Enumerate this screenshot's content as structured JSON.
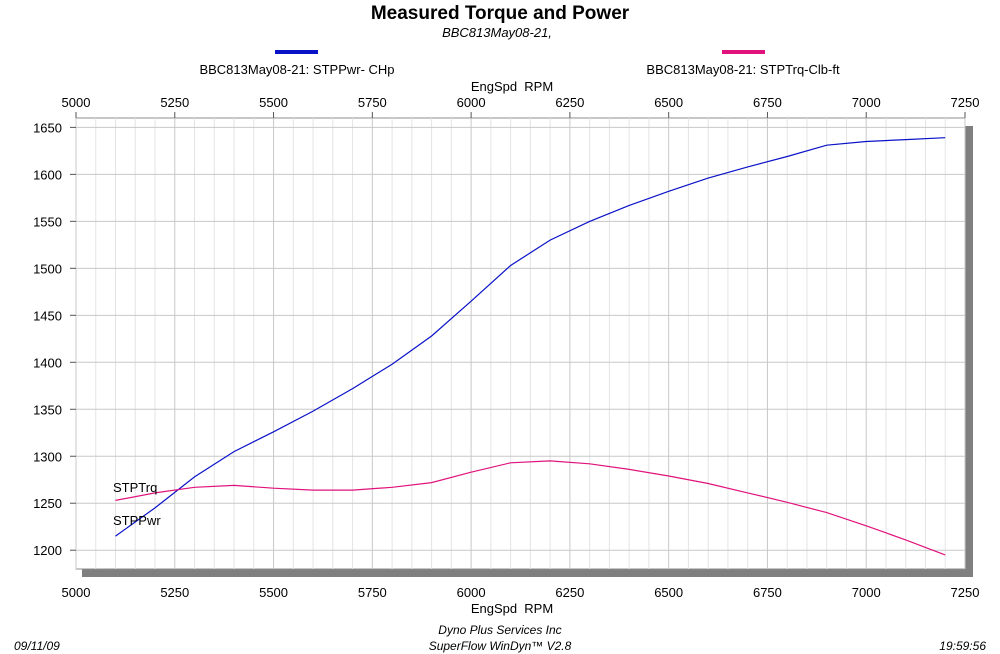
{
  "chart_data": {
    "type": "line",
    "title": "Measured Torque and Power",
    "subtitle": "BBC813May08-21,",
    "xlabel": "EngSpd  RPM",
    "x_ticks": [
      5000,
      5250,
      5500,
      5750,
      6000,
      6250,
      6500,
      6750,
      7000,
      7250
    ],
    "y_ticks": [
      1200,
      1250,
      1300,
      1350,
      1400,
      1450,
      1500,
      1550,
      1600,
      1650
    ],
    "xlim": [
      5000,
      7250
    ],
    "ylim": [
      1180,
      1660
    ],
    "grid": true,
    "legend_position": "top",
    "series": [
      {
        "name": "BBC813May08-21: STPPwr- CHp",
        "label": "STPPwr",
        "color": "#0a12c8",
        "x": [
          5100,
          5200,
          5300,
          5400,
          5500,
          5600,
          5700,
          5800,
          5900,
          6000,
          6100,
          6200,
          6300,
          6400,
          6500,
          6600,
          6700,
          6800,
          6900,
          7000,
          7100,
          7200
        ],
        "values": [
          1215,
          1245,
          1278,
          1305,
          1326,
          1348,
          1372,
          1398,
          1428,
          1465,
          1503,
          1530,
          1550,
          1567,
          1582,
          1596,
          1608,
          1619,
          1631,
          1635,
          1637,
          1639
        ]
      },
      {
        "name": "BBC813May08-21: STPTrq-Clb-ft",
        "label": "STPTrq",
        "color": "#e0127c",
        "x": [
          5100,
          5200,
          5300,
          5400,
          5500,
          5600,
          5700,
          5800,
          5900,
          6000,
          6100,
          6200,
          6300,
          6400,
          6500,
          6600,
          6700,
          6800,
          6900,
          7000,
          7100,
          7200
        ],
        "values": [
          1253,
          1261,
          1267,
          1269,
          1266,
          1264,
          1264,
          1267,
          1272,
          1283,
          1293,
          1295,
          1292,
          1286,
          1279,
          1271,
          1261,
          1251,
          1240,
          1226,
          1211,
          1195
        ]
      }
    ]
  },
  "footer": {
    "date": "09/11/09",
    "company": "Dyno Plus Services Inc",
    "software": "SuperFlow WinDyn™ V2.8",
    "time": "19:59:56"
  }
}
